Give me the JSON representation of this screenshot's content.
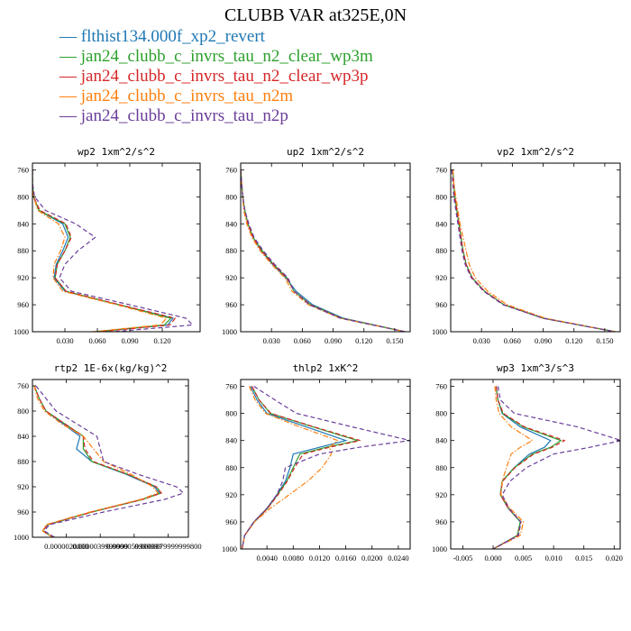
{
  "title": "CLUBB VAR at325E,0N",
  "legend": [
    {
      "label": "flthist134.000f_xp2_revert",
      "color": "#1f77b4",
      "dash": "solid"
    },
    {
      "label": "jan24_clubb_c_invrs_tau_n2_clear_wp3m",
      "color": "#2ca02c",
      "dash": "solid"
    },
    {
      "label": "jan24_clubb_c_invrs_tau_n2_clear_wp3p",
      "color": "#d62728",
      "dash": "dashed"
    },
    {
      "label": "jan24_clubb_c_invrs_tau_n2m",
      "color": "#ff7f0e",
      "dash": "dashdot"
    },
    {
      "label": "jan24_clubb_c_invrs_tau_n2p",
      "color": "#6a3d9a",
      "dash": "dashed"
    }
  ],
  "chart_data": [
    {
      "type": "line",
      "title": "wp2  1xm^2/s^2",
      "xlim": [
        0,
        0.155
      ],
      "ylim": [
        1000,
        750
      ],
      "xticks": [
        0.03,
        0.06,
        0.09,
        0.12
      ],
      "xtick_labels": [
        "0.030",
        "0.060",
        "0.090",
        "0.120"
      ],
      "yticks": [
        760,
        800,
        840,
        880,
        920,
        960,
        1000
      ],
      "y": [
        760,
        780,
        800,
        820,
        840,
        860,
        880,
        900,
        920,
        940,
        960,
        980,
        990,
        1000
      ],
      "series": [
        {
          "name": "flthist134.000f_xp2_revert",
          "values": [
            0,
            0,
            0.001,
            0.006,
            0.028,
            0.033,
            0.028,
            0.022,
            0.02,
            0.03,
            0.08,
            0.13,
            0.125,
            0.06
          ]
        },
        {
          "name": "jan24_clubb_c_invrs_tau_n2_clear_wp3m",
          "values": [
            0,
            0,
            0.001,
            0.006,
            0.03,
            0.035,
            0.03,
            0.023,
            0.021,
            0.031,
            0.08,
            0.128,
            0.122,
            0.058
          ]
        },
        {
          "name": "jan24_clubb_c_invrs_tau_n2_clear_wp3p",
          "values": [
            0,
            0,
            0.001,
            0.007,
            0.031,
            0.036,
            0.03,
            0.023,
            0.021,
            0.031,
            0.081,
            0.132,
            0.127,
            0.062
          ]
        },
        {
          "name": "jan24_clubb_c_invrs_tau_n2m",
          "values": [
            0,
            0,
            0.001,
            0.005,
            0.024,
            0.03,
            0.026,
            0.02,
            0.019,
            0.028,
            0.078,
            0.124,
            0.118,
            0.055
          ]
        },
        {
          "name": "jan24_clubb_c_invrs_tau_n2p",
          "values": [
            0,
            0,
            0.002,
            0.012,
            0.04,
            0.058,
            0.042,
            0.03,
            0.025,
            0.036,
            0.09,
            0.142,
            0.148,
            0.075
          ]
        }
      ]
    },
    {
      "type": "line",
      "title": "up2  1xm^2/s^2",
      "xlim": [
        0,
        0.165
      ],
      "ylim": [
        1000,
        750
      ],
      "xticks": [
        0.03,
        0.06,
        0.09,
        0.12,
        0.15
      ],
      "xtick_labels": [
        "0.030",
        "0.060",
        "0.090",
        "0.120",
        "0.150"
      ],
      "yticks": [
        760,
        800,
        840,
        880,
        920,
        960,
        1000
      ],
      "y": [
        760,
        780,
        800,
        820,
        840,
        860,
        880,
        900,
        920,
        940,
        960,
        980,
        1000
      ],
      "series": [
        {
          "name": "flthist134.000f_xp2_revert",
          "values": [
            0,
            0.001,
            0.002,
            0.004,
            0.007,
            0.012,
            0.02,
            0.031,
            0.044,
            0.054,
            0.07,
            0.1,
            0.16
          ]
        },
        {
          "name": "jan24_clubb_c_invrs_tau_n2_clear_wp3m",
          "values": [
            0,
            0.001,
            0.002,
            0.004,
            0.007,
            0.012,
            0.021,
            0.032,
            0.045,
            0.052,
            0.068,
            0.098,
            0.16
          ]
        },
        {
          "name": "jan24_clubb_c_invrs_tau_n2_clear_wp3p",
          "values": [
            0,
            0.001,
            0.002,
            0.004,
            0.007,
            0.012,
            0.02,
            0.032,
            0.045,
            0.052,
            0.068,
            0.098,
            0.16
          ]
        },
        {
          "name": "jan24_clubb_c_invrs_tau_n2m",
          "values": [
            0,
            0.001,
            0.002,
            0.003,
            0.006,
            0.011,
            0.019,
            0.03,
            0.043,
            0.05,
            0.066,
            0.097,
            0.16
          ]
        },
        {
          "name": "jan24_clubb_c_invrs_tau_n2p",
          "values": [
            0,
            0.001,
            0.002,
            0.004,
            0.008,
            0.013,
            0.022,
            0.033,
            0.046,
            0.052,
            0.067,
            0.097,
            0.16
          ]
        }
      ]
    },
    {
      "type": "line",
      "title": "vp2  1xm^2/s^2",
      "xlim": [
        0,
        0.165
      ],
      "ylim": [
        1000,
        750
      ],
      "xticks": [
        0.03,
        0.06,
        0.09,
        0.12,
        0.15
      ],
      "xtick_labels": [
        "0.030",
        "0.060",
        "0.090",
        "0.120",
        "0.150"
      ],
      "yticks": [
        760,
        800,
        840,
        880,
        920,
        960,
        1000
      ],
      "y": [
        760,
        780,
        800,
        820,
        840,
        860,
        880,
        900,
        920,
        940,
        960,
        980,
        1000
      ],
      "series": [
        {
          "name": "flthist134.000f_xp2_revert",
          "values": [
            0.002,
            0.003,
            0.004,
            0.006,
            0.008,
            0.01,
            0.012,
            0.015,
            0.021,
            0.033,
            0.052,
            0.09,
            0.16
          ]
        },
        {
          "name": "jan24_clubb_c_invrs_tau_n2_clear_wp3m",
          "values": [
            0.002,
            0.003,
            0.004,
            0.006,
            0.008,
            0.01,
            0.012,
            0.015,
            0.021,
            0.033,
            0.052,
            0.09,
            0.16
          ]
        },
        {
          "name": "jan24_clubb_c_invrs_tau_n2_clear_wp3p",
          "values": [
            0.002,
            0.003,
            0.004,
            0.006,
            0.008,
            0.01,
            0.012,
            0.015,
            0.021,
            0.033,
            0.052,
            0.09,
            0.16
          ]
        },
        {
          "name": "jan24_clubb_c_invrs_tau_n2m",
          "values": [
            0.002,
            0.003,
            0.005,
            0.007,
            0.009,
            0.012,
            0.015,
            0.018,
            0.024,
            0.036,
            0.055,
            0.092,
            0.16
          ]
        },
        {
          "name": "jan24_clubb_c_invrs_tau_n2p",
          "values": [
            0.001,
            0.002,
            0.003,
            0.005,
            0.007,
            0.009,
            0.011,
            0.014,
            0.02,
            0.032,
            0.051,
            0.09,
            0.16
          ]
        }
      ]
    },
    {
      "type": "line",
      "title": "rtp2  1E-6x(kg/kg)^2",
      "xlim": [
        0,
        9.2e-06
      ],
      "ylim": [
        1000,
        750
      ],
      "xticks": [
        2e-06,
        4e-06,
        6e-06,
        8e-06
      ],
      "xtick_labels": [
        "0.0000020000",
        "0.0000039999999",
        "0.0000059999999",
        "0.0000079999999800"
      ],
      "yticks": [
        760,
        800,
        840,
        880,
        920,
        960,
        1000
      ],
      "y": [
        760,
        780,
        800,
        820,
        840,
        860,
        880,
        900,
        920,
        930,
        940,
        960,
        980,
        990,
        1000
      ],
      "series": [
        {
          "name": "flthist134.000f_xp2_revert",
          "values": [
            1e-07,
            4e-07,
            8e-07,
            1.8e-06,
            2.8e-06,
            2.6e-06,
            3.5e-06,
            5.5e-06,
            7.2e-06,
            7.5e-06,
            6.5e-06,
            3.5e-06,
            9e-07,
            6e-07,
            1.2e-06
          ]
        },
        {
          "name": "jan24_clubb_c_invrs_tau_n2_clear_wp3m",
          "values": [
            1e-07,
            4e-07,
            8e-07,
            1.9e-06,
            3e-06,
            3e-06,
            3.5e-06,
            5.6e-06,
            7.3e-06,
            7.6e-06,
            6.5e-06,
            3.5e-06,
            9e-07,
            6e-07,
            1.2e-06
          ]
        },
        {
          "name": "jan24_clubb_c_invrs_tau_n2_clear_wp3p",
          "values": [
            1e-07,
            4e-07,
            8e-07,
            1.9e-06,
            3e-06,
            3.1e-06,
            3.6e-06,
            5.6e-06,
            7.3e-06,
            7.6e-06,
            6.5e-06,
            3.5e-06,
            9e-07,
            6e-07,
            1.2e-06
          ]
        },
        {
          "name": "jan24_clubb_c_invrs_tau_n2m",
          "values": [
            1e-07,
            3e-07,
            7e-07,
            1.7e-06,
            3e-06,
            3.6e-06,
            4.2e-06,
            5.8e-06,
            7.1e-06,
            7.4e-06,
            6.4e-06,
            3.4e-06,
            8e-07,
            6e-07,
            1.2e-06
          ]
        },
        {
          "name": "jan24_clubb_c_invrs_tau_n2p",
          "values": [
            2e-07,
            8e-07,
            1.4e-06,
            2.6e-06,
            3.8e-06,
            4e-06,
            4.2e-06,
            6.2e-06,
            8.5e-06,
            8.9e-06,
            7.8e-06,
            4.2e-06,
            1e-06,
            7e-07,
            1.3e-06
          ]
        }
      ]
    },
    {
      "type": "line",
      "title": "thlp2  1xK^2",
      "xlim": [
        0,
        0.0258
      ],
      "ylim": [
        1000,
        750
      ],
      "xticks": [
        0.004,
        0.008,
        0.012,
        0.016,
        0.02,
        0.024
      ],
      "xtick_labels": [
        "0.0040",
        "0.0080",
        "0.0120",
        "0.0160",
        "0.0200",
        "0.0240"
      ],
      "yticks": [
        760,
        800,
        840,
        880,
        920,
        960,
        1000
      ],
      "y": [
        760,
        780,
        800,
        820,
        840,
        850,
        860,
        880,
        900,
        920,
        940,
        960,
        980,
        1000
      ],
      "series": [
        {
          "name": "flthist134.000f_xp2_revert",
          "values": [
            0.0015,
            0.0025,
            0.004,
            0.01,
            0.016,
            0.012,
            0.008,
            0.0075,
            0.0068,
            0.0055,
            0.004,
            0.002,
            0.0006,
            0.0002
          ]
        },
        {
          "name": "jan24_clubb_c_invrs_tau_n2_clear_wp3m",
          "values": [
            0.0017,
            0.0028,
            0.0045,
            0.011,
            0.0178,
            0.013,
            0.009,
            0.008,
            0.007,
            0.0056,
            0.0041,
            0.0021,
            0.0006,
            0.0002
          ]
        },
        {
          "name": "jan24_clubb_c_invrs_tau_n2_clear_wp3p",
          "values": [
            0.0017,
            0.0028,
            0.0046,
            0.0112,
            0.0182,
            0.0135,
            0.0095,
            0.0082,
            0.0071,
            0.0057,
            0.0041,
            0.0021,
            0.0006,
            0.0002
          ]
        },
        {
          "name": "jan24_clubb_c_invrs_tau_n2m",
          "values": [
            0.0013,
            0.0022,
            0.0038,
            0.009,
            0.0148,
            0.0135,
            0.0138,
            0.0124,
            0.0102,
            0.0074,
            0.0045,
            0.0021,
            0.0006,
            0.0002
          ]
        },
        {
          "name": "jan24_clubb_c_invrs_tau_n2p",
          "values": [
            0.002,
            0.0052,
            0.0085,
            0.017,
            0.0258,
            0.018,
            0.012,
            0.0068,
            0.0064,
            0.0055,
            0.004,
            0.002,
            0.0006,
            0.0002
          ]
        }
      ]
    },
    {
      "type": "line",
      "title": "wp3  1xm^3/s^3",
      "xlim": [
        -0.007,
        0.021
      ],
      "ylim": [
        1000,
        750
      ],
      "xticks": [
        -0.005,
        0,
        0.005,
        0.01,
        0.015,
        0.02
      ],
      "xtick_labels": [
        "-0.005",
        "0.000",
        "0.005",
        "0.010",
        "0.015",
        "0.020"
      ],
      "yticks": [
        760,
        800,
        840,
        880,
        920,
        960,
        1000
      ],
      "y": [
        760,
        780,
        800,
        820,
        840,
        850,
        860,
        880,
        900,
        920,
        940,
        960,
        980,
        1000
      ],
      "series": [
        {
          "name": "flthist134.000f_xp2_revert",
          "values": [
            0.0005,
            0.0008,
            0.0015,
            0.0045,
            0.0095,
            0.0085,
            0.006,
            0.0035,
            0.0015,
            0.0012,
            0.0025,
            0.0045,
            0.004,
            0
          ]
        },
        {
          "name": "jan24_clubb_c_invrs_tau_n2_clear_wp3m",
          "values": [
            0.0005,
            0.0008,
            0.0016,
            0.005,
            0.0112,
            0.0095,
            0.0065,
            0.0035,
            0.0015,
            0.0012,
            0.0025,
            0.0045,
            0.004,
            0
          ]
        },
        {
          "name": "jan24_clubb_c_invrs_tau_n2_clear_wp3p",
          "values": [
            0.0005,
            0.0008,
            0.0017,
            0.0052,
            0.0118,
            0.0098,
            0.0067,
            0.0036,
            0.0016,
            0.0012,
            0.0025,
            0.0046,
            0.0041,
            0
          ]
        },
        {
          "name": "jan24_clubb_c_invrs_tau_n2m",
          "values": [
            0.0003,
            0.0005,
            0.001,
            0.003,
            0.0065,
            0.0045,
            0.003,
            0.0022,
            0.0015,
            0.0013,
            0.0028,
            0.005,
            0.0045,
            0
          ]
        },
        {
          "name": "jan24_clubb_c_invrs_tau_n2p",
          "values": [
            0.0008,
            0.0012,
            0.0035,
            0.014,
            0.0212,
            0.016,
            0.01,
            0.0055,
            0.0028,
            0.0015,
            0.0026,
            0.0046,
            0.0042,
            0
          ]
        }
      ]
    }
  ]
}
